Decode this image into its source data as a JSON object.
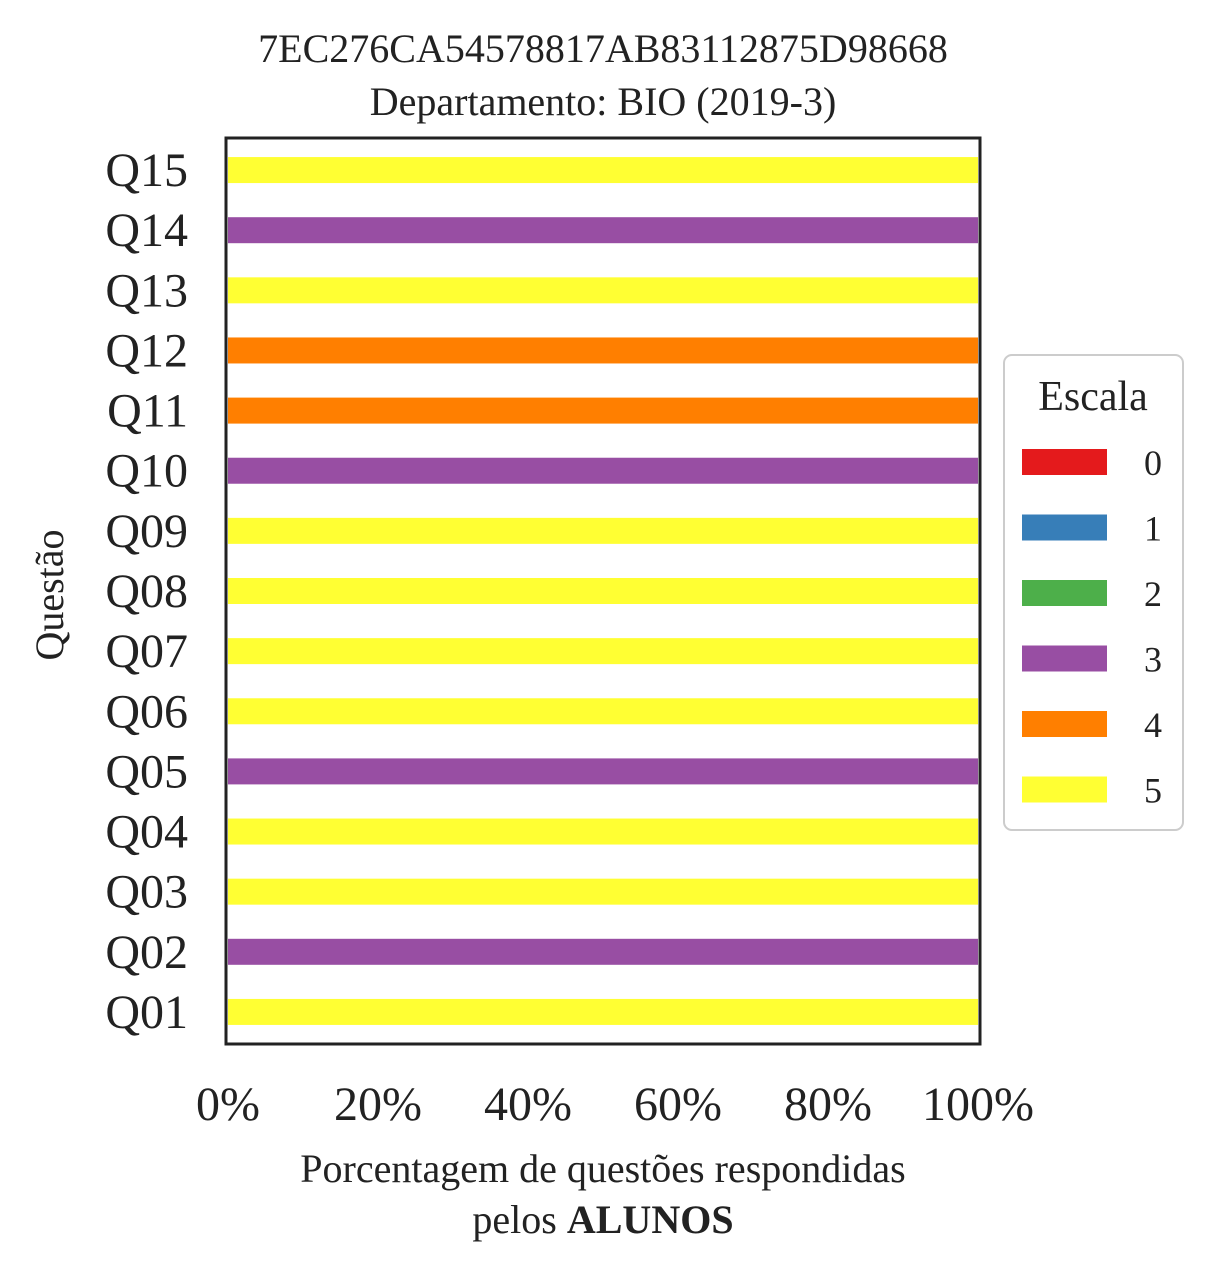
{
  "chart_data": {
    "type": "bar",
    "orientation": "horizontal",
    "stacked": true,
    "title_line1": "7EC276CA54578817AB83112875D98668",
    "title_line2": "Departamento: BIO (2019-3)",
    "ylabel": "Questão",
    "xlabel_line1": "Porcentagem de questões respondidas",
    "xlabel_line2_prefix": "pelos ",
    "xlabel_line2_bold": "ALUNOS",
    "xlim": [
      0,
      100
    ],
    "x_ticks": [
      "0%",
      "20%",
      "40%",
      "60%",
      "80%",
      "100%"
    ],
    "categories": [
      "Q01",
      "Q02",
      "Q03",
      "Q04",
      "Q05",
      "Q06",
      "Q07",
      "Q08",
      "Q09",
      "Q10",
      "Q11",
      "Q12",
      "Q13",
      "Q14",
      "Q15"
    ],
    "series": [
      {
        "name": "0",
        "color": "#e41a1c",
        "values": [
          0,
          0,
          0,
          0,
          0,
          0,
          0,
          0,
          0,
          0,
          0,
          0,
          0,
          0,
          0
        ]
      },
      {
        "name": "1",
        "color": "#377eb8",
        "values": [
          0,
          0,
          0,
          0,
          0,
          0,
          0,
          0,
          0,
          0,
          0,
          0,
          0,
          0,
          0
        ]
      },
      {
        "name": "2",
        "color": "#4daf4a",
        "values": [
          0,
          0,
          0,
          0,
          0,
          0,
          0,
          0,
          0,
          0,
          0,
          0,
          0,
          0,
          0
        ]
      },
      {
        "name": "3",
        "color": "#984ea3",
        "values": [
          0,
          100,
          0,
          0,
          100,
          0,
          0,
          0,
          0,
          100,
          0,
          0,
          0,
          100,
          0
        ]
      },
      {
        "name": "4",
        "color": "#ff7f00",
        "values": [
          0,
          0,
          0,
          0,
          0,
          0,
          0,
          0,
          0,
          0,
          100,
          100,
          0,
          0,
          0
        ]
      },
      {
        "name": "5",
        "color": "#ffff33",
        "values": [
          100,
          0,
          100,
          100,
          0,
          100,
          100,
          100,
          100,
          0,
          0,
          0,
          100,
          0,
          100
        ]
      }
    ],
    "legend": {
      "title": "Escala",
      "placement": "center-right outside"
    },
    "grid": false
  }
}
